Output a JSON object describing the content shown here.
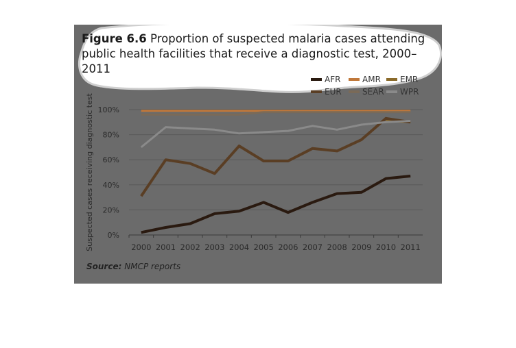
{
  "caption": {
    "figure_label": "Figure 6.6",
    "text": "Proportion of suspected malaria cases attending public health facilities that receive a diagnostic test, 2000–2011"
  },
  "source": {
    "label": "Source:",
    "text": "NMCP reports"
  },
  "colors": {
    "background": "#6b6b6b",
    "gridline": "#5a5a5a",
    "axis_text": "#2a2a2a"
  },
  "chart_data": {
    "type": "line",
    "ylabel": "Suspected cases receiving diagnostic test",
    "xlabel": "",
    "ylim": [
      0,
      100
    ],
    "y_ticks": [
      "0%",
      "20%",
      "40%",
      "60%",
      "80%",
      "100%"
    ],
    "y_tick_values": [
      0,
      20,
      40,
      60,
      80,
      100
    ],
    "x": [
      "2000",
      "2001",
      "2002",
      "2003",
      "2004",
      "2005",
      "2006",
      "2007",
      "2008",
      "2009",
      "2010",
      "2011"
    ],
    "legend_position": "top-right",
    "grid": true,
    "series": [
      {
        "name": "AFR",
        "color": "#2a1a10",
        "values": [
          2,
          6,
          9,
          17,
          19,
          26,
          18,
          26,
          33,
          34,
          45,
          47
        ]
      },
      {
        "name": "AMR",
        "color": "#c0783a",
        "values": [
          99,
          99,
          99,
          99,
          99,
          99,
          99,
          99,
          99,
          99,
          99,
          99
        ]
      },
      {
        "name": "EMR",
        "color": "#8a6a2a",
        "values": [
          null,
          null,
          null,
          null,
          null,
          null,
          null,
          null,
          null,
          null,
          91,
          90
        ]
      },
      {
        "name": "EUR",
        "color": "#5a3e24",
        "values": [
          31,
          60,
          57,
          49,
          71,
          59,
          59,
          69,
          67,
          76,
          93,
          90
        ]
      },
      {
        "name": "SEAR",
        "color": "#7a6a58",
        "values": [
          96,
          96,
          96,
          96,
          96,
          98,
          98,
          98,
          98,
          98,
          98,
          98
        ]
      },
      {
        "name": "WPR",
        "color": "#8a8a8a",
        "values": [
          70,
          86,
          85,
          84,
          81,
          82,
          83,
          87,
          84,
          88,
          90,
          91
        ]
      }
    ]
  }
}
